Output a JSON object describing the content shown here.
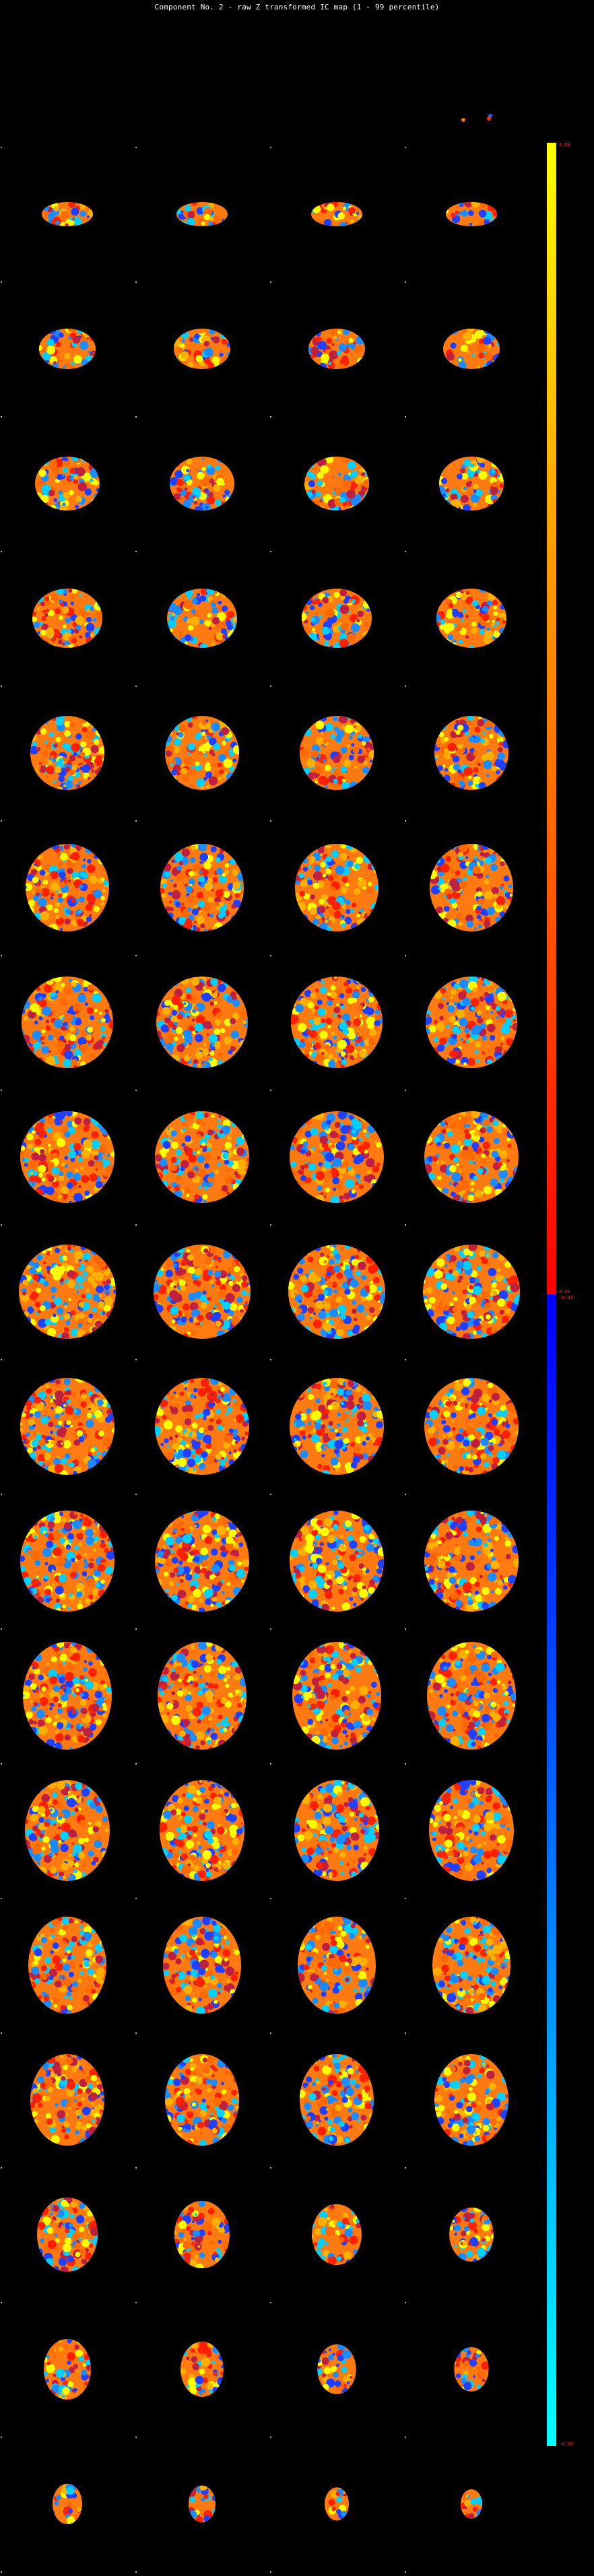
{
  "title": "Component No. 2 - raw Z transformed IC map (1 - 99 percentile)",
  "colorbar": {
    "max_label": "4.03",
    "pos_threshold_label": "0.43",
    "neg_threshold_label": "-0.43",
    "min_label": "-4.10",
    "colors": {
      "pos_top": "#ffff00",
      "pos_bottom": "#ff0000",
      "neg_top": "#0000ff",
      "neg_bottom": "#00ffff"
    }
  },
  "montage": {
    "rows": 19,
    "columns": 4,
    "background": "#000000",
    "overlay_colors": [
      "#ffff00",
      "#ffb000",
      "#ff6a00",
      "#ff2000",
      "#c02040",
      "#2040ff",
      "#1a8cff",
      "#00d0ff"
    ]
  }
}
